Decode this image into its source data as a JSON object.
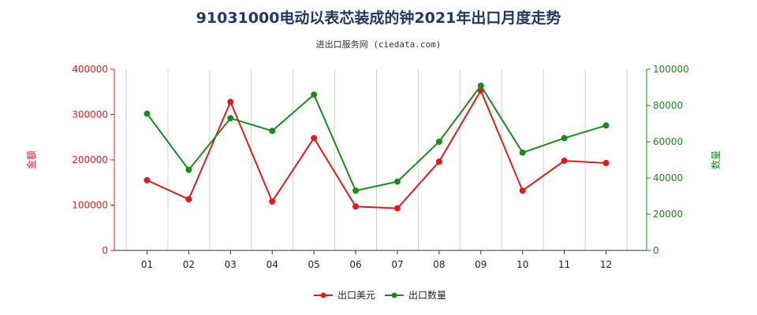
{
  "title": "91031000电动以表芯装成的钟2021年出口月度走势",
  "subtitle": "进出口服务网 (ciedata.com)",
  "colors": {
    "usd": "#e31a1c",
    "qty": "#1a8a1a",
    "grid": "#d0d0d0"
  },
  "chart_data": {
    "type": "line",
    "categories": [
      "01",
      "02",
      "03",
      "04",
      "05",
      "06",
      "07",
      "08",
      "09",
      "10",
      "11",
      "12"
    ],
    "y_left": {
      "label": "金额",
      "ylim": [
        0,
        400000
      ],
      "ticks": [
        0,
        100000,
        200000,
        300000,
        400000
      ],
      "tick_labels": [
        "0",
        "100000",
        "200000",
        "300000",
        "400000"
      ]
    },
    "y_right": {
      "label": "数量",
      "ylim": [
        0,
        100000
      ],
      "ticks": [
        0,
        20000,
        40000,
        60000,
        80000,
        100000
      ],
      "tick_labels": [
        "0",
        "20000",
        "40000",
        "60000",
        "80000",
        "100000"
      ]
    },
    "series": [
      {
        "name": "出口美元",
        "axis": "left",
        "values": [
          155000,
          113000,
          328000,
          108000,
          248000,
          97000,
          93000,
          196000,
          353000,
          132000,
          198000,
          193000
        ]
      },
      {
        "name": "出口数量",
        "axis": "right",
        "values": [
          75500,
          44500,
          73000,
          66000,
          86000,
          33000,
          38000,
          60000,
          91000,
          54000,
          62000,
          69000
        ]
      }
    ],
    "grid": "vertical",
    "legend": "bottom-center"
  }
}
